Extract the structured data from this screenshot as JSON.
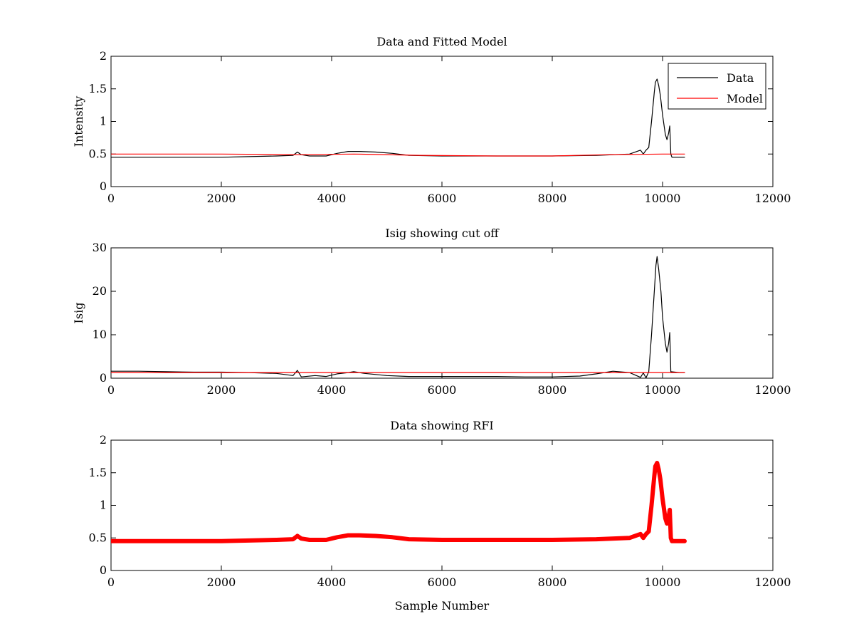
{
  "colors": {
    "data": "#000000",
    "model": "#ff0000",
    "rfi": "#ff0000"
  },
  "chart_data": [
    {
      "type": "line",
      "title": "Data and Fitted Model",
      "xlabel": "",
      "ylabel": "Intensity",
      "xlim": [
        0,
        12000
      ],
      "ylim": [
        0,
        2
      ],
      "xticks": [
        0,
        2000,
        4000,
        6000,
        8000,
        10000,
        12000
      ],
      "yticks": [
        0,
        0.5,
        1,
        1.5,
        2
      ],
      "xtick_labels": [
        "0",
        "2000",
        "4000",
        "6000",
        "8000",
        "10000",
        "12000"
      ],
      "ytick_labels": [
        "0",
        "0.5",
        "1",
        "1.5",
        "2"
      ],
      "legend": {
        "placement": "top-right",
        "entries": [
          "Data",
          "Model"
        ]
      },
      "series": [
        {
          "name": "Data",
          "color": "#000000",
          "x": [
            0,
            500,
            1000,
            1500,
            2000,
            2500,
            3000,
            3300,
            3380,
            3450,
            3600,
            3900,
            4100,
            4300,
            4500,
            4800,
            5100,
            5400,
            6000,
            7000,
            8000,
            8800,
            9400,
            9600,
            9650,
            9700,
            9750,
            9800,
            9850,
            9870,
            9900,
            9930,
            9960,
            10000,
            10050,
            10080,
            10110,
            10130,
            10150,
            10170,
            10300,
            10400
          ],
          "y": [
            0.45,
            0.45,
            0.45,
            0.45,
            0.45,
            0.46,
            0.47,
            0.48,
            0.53,
            0.49,
            0.47,
            0.47,
            0.51,
            0.54,
            0.54,
            0.53,
            0.51,
            0.48,
            0.47,
            0.47,
            0.47,
            0.48,
            0.5,
            0.56,
            0.5,
            0.56,
            0.6,
            1.0,
            1.45,
            1.6,
            1.65,
            1.55,
            1.4,
            1.1,
            0.8,
            0.72,
            0.82,
            0.93,
            0.5,
            0.45,
            0.45,
            0.45
          ]
        },
        {
          "name": "Model",
          "color": "#ff0000",
          "x": [
            0,
            2000,
            3400,
            4400,
            5600,
            7000,
            8000,
            9000,
            10000,
            10400
          ],
          "y": [
            0.5,
            0.5,
            0.49,
            0.5,
            0.48,
            0.47,
            0.47,
            0.49,
            0.5,
            0.5
          ]
        }
      ]
    },
    {
      "type": "line",
      "title": "Isig showing cut off",
      "xlabel": "",
      "ylabel": "Isig",
      "xlim": [
        0,
        12000
      ],
      "ylim": [
        0,
        30
      ],
      "xticks": [
        0,
        2000,
        4000,
        6000,
        8000,
        10000,
        12000
      ],
      "yticks": [
        0,
        10,
        20,
        30
      ],
      "xtick_labels": [
        "0",
        "2000",
        "4000",
        "6000",
        "8000",
        "10000",
        "12000"
      ],
      "ytick_labels": [
        "0",
        "10",
        "20",
        "30"
      ],
      "series": [
        {
          "color": "#000000",
          "x": [
            0,
            500,
            1000,
            1500,
            2000,
            2500,
            3000,
            3300,
            3380,
            3450,
            3700,
            3900,
            4100,
            4300,
            4400,
            4600,
            5000,
            5400,
            6000,
            7000,
            7500,
            8000,
            8500,
            8800,
            9100,
            9400,
            9600,
            9650,
            9700,
            9750,
            9800,
            9850,
            9880,
            9900,
            9930,
            9970,
            10000,
            10050,
            10080,
            10110,
            10130,
            10150,
            10300,
            10400
          ],
          "y": [
            1.6,
            1.6,
            1.5,
            1.4,
            1.4,
            1.3,
            1.1,
            0.6,
            1.8,
            0.3,
            0.6,
            0.4,
            1.0,
            1.3,
            1.5,
            1.1,
            0.6,
            0.4,
            0.4,
            0.4,
            0.3,
            0.3,
            0.5,
            1.0,
            1.6,
            1.3,
            0.2,
            1.2,
            0.1,
            1.5,
            10,
            20,
            26,
            28,
            25,
            20,
            14,
            8,
            6,
            8,
            10.5,
            1.5,
            1.3,
            1.3
          ]
        },
        {
          "color": "#ff0000",
          "x": [
            0,
            10400
          ],
          "y": [
            1.3,
            1.3
          ]
        }
      ]
    },
    {
      "type": "line",
      "title": "Data showing RFI",
      "xlabel": "Sample Number",
      "ylabel": "",
      "xlim": [
        0,
        12000
      ],
      "ylim": [
        0,
        2
      ],
      "xticks": [
        0,
        2000,
        4000,
        6000,
        8000,
        10000,
        12000
      ],
      "yticks": [
        0,
        0.5,
        1,
        1.5,
        2
      ],
      "xtick_labels": [
        "0",
        "2000",
        "4000",
        "6000",
        "8000",
        "10000",
        "12000"
      ],
      "ytick_labels": [
        "0",
        "0.5",
        "1",
        "1.5",
        "2"
      ],
      "series": [
        {
          "color": "#ff0000",
          "x": [
            0,
            500,
            1000,
            1500,
            2000,
            2500,
            3000,
            3300,
            3380,
            3450,
            3600,
            3900,
            4100,
            4300,
            4500,
            4800,
            5100,
            5400,
            6000,
            7000,
            8000,
            8800,
            9400,
            9600,
            9650,
            9700,
            9750,
            9800,
            9850,
            9870,
            9900,
            9930,
            9960,
            10000,
            10050,
            10080,
            10110,
            10130,
            10150,
            10170,
            10300,
            10400
          ],
          "y": [
            0.45,
            0.45,
            0.45,
            0.45,
            0.45,
            0.46,
            0.47,
            0.48,
            0.53,
            0.49,
            0.47,
            0.47,
            0.51,
            0.54,
            0.54,
            0.53,
            0.51,
            0.48,
            0.47,
            0.47,
            0.47,
            0.48,
            0.5,
            0.56,
            0.5,
            0.56,
            0.6,
            1.0,
            1.45,
            1.6,
            1.65,
            1.55,
            1.4,
            1.1,
            0.8,
            0.72,
            0.82,
            0.93,
            0.5,
            0.45,
            0.45,
            0.45
          ]
        }
      ]
    }
  ]
}
